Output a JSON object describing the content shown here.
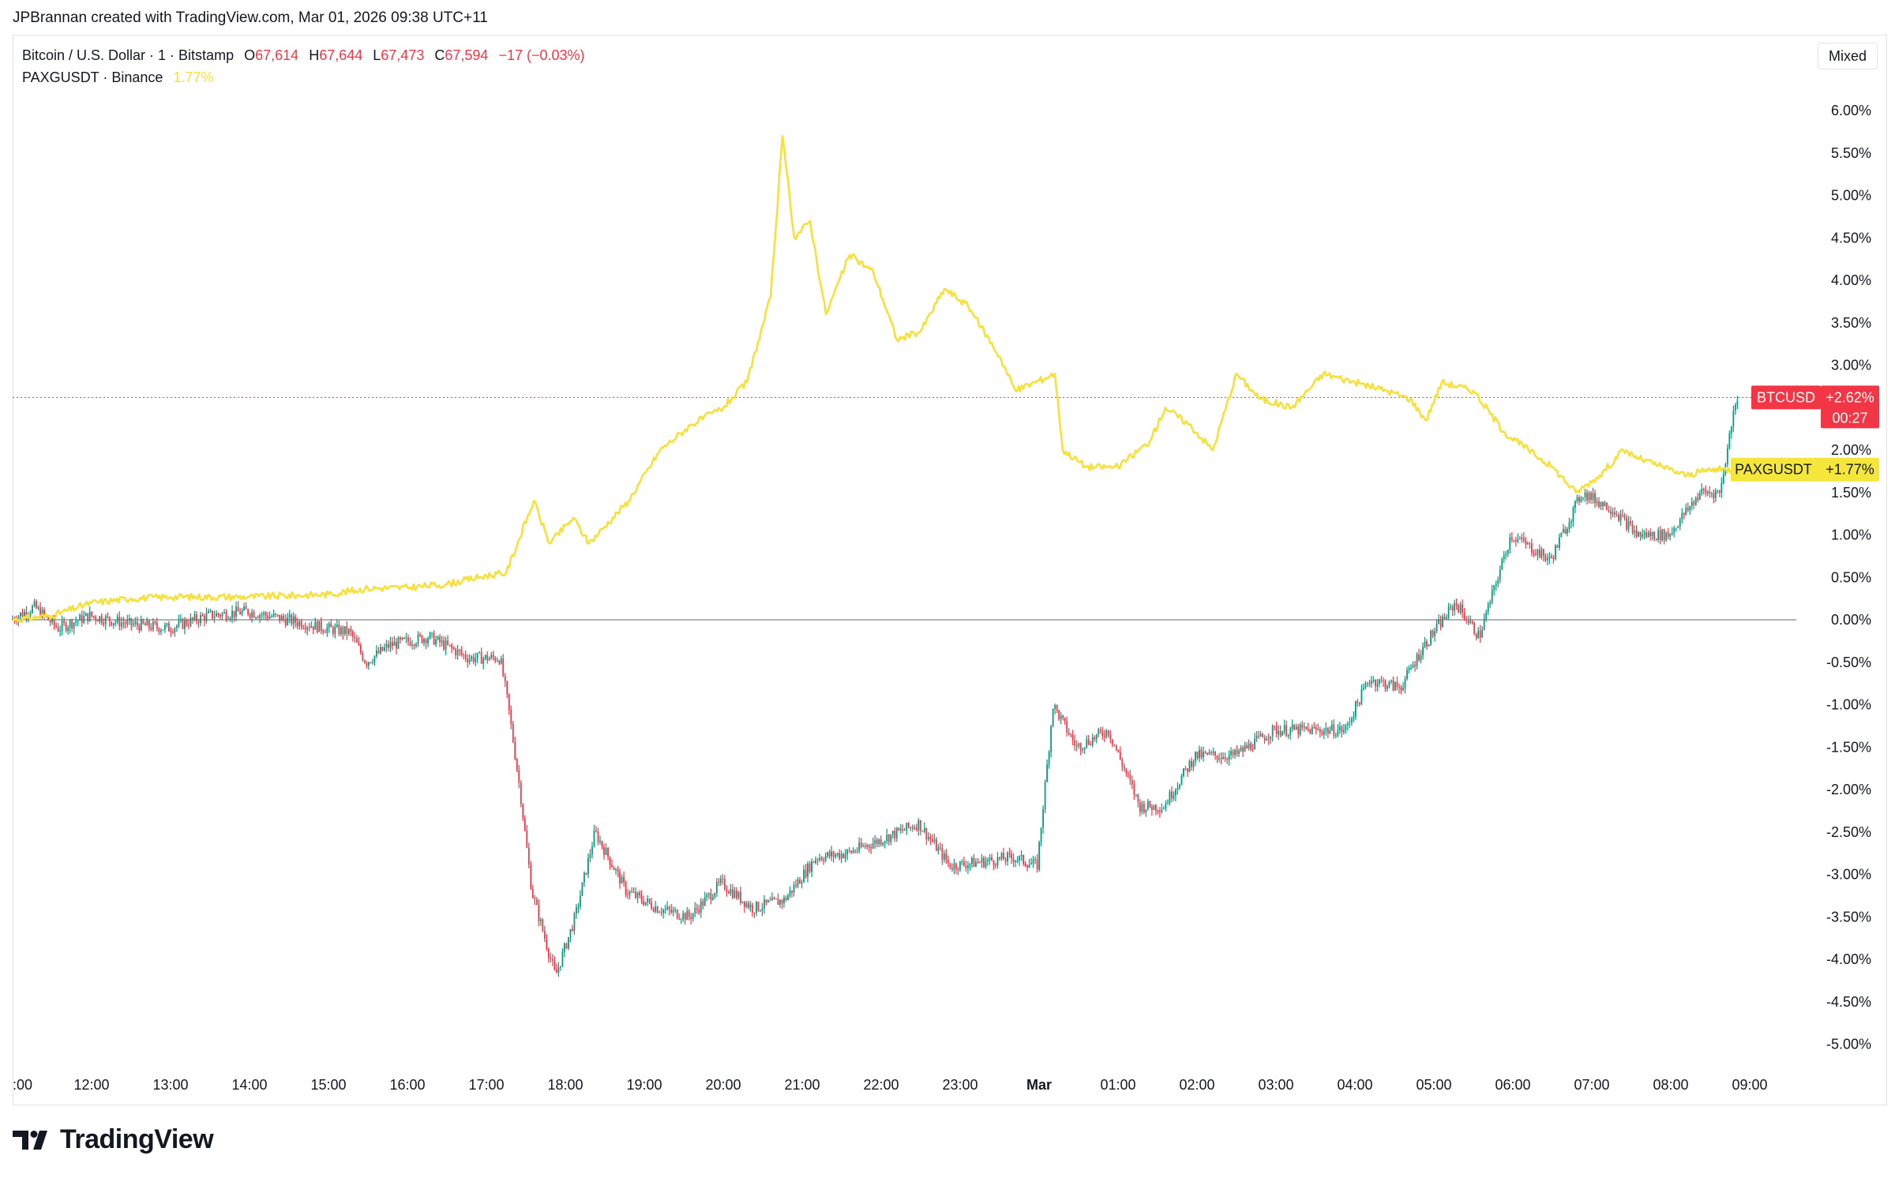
{
  "credit": "JPBrannan created with TradingView.com, Mar 01, 2026 09:38 UTC+11",
  "legend": {
    "symbol1": "Bitcoin / U.S. Dollar · 1 · Bitstamp",
    "o_label": "O",
    "o_value": "67,614",
    "h_label": "H",
    "h_value": "67,644",
    "l_label": "L",
    "l_value": "67,473",
    "c_label": "C",
    "c_value": "67,594",
    "change": "−17 (−0.03%)",
    "symbol2": "PAXGUSDT · Binance",
    "symbol2_value": "1.77%"
  },
  "scale_mode": "Mixed",
  "brand": "TradingView",
  "colors": {
    "up": "#089981",
    "down": "#f23645",
    "paxg": "#f7e03a",
    "btc_tag": "#f23645",
    "paxg_tag": "#f5e63c"
  },
  "tags": {
    "btc_name": "BTCUSD",
    "btc_value": "+2.62%",
    "btc_countdown": "00:27",
    "paxg_name": "PAXGUSDT",
    "paxg_value": "+1.77%"
  },
  "chart_data": {
    "type": "line",
    "title": "",
    "y_unit": "percent",
    "ylim": [
      -5.3,
      6.4
    ],
    "y_ticks": [
      "6.00%",
      "5.50%",
      "5.00%",
      "4.50%",
      "4.00%",
      "3.50%",
      "3.00%",
      "2.50%",
      "2.00%",
      "1.50%",
      "1.00%",
      "0.50%",
      "0.00%",
      "-0.50%",
      "-1.00%",
      "-1.50%",
      "-2.00%",
      "-2.50%",
      "-3.00%",
      "-3.50%",
      "-4.00%",
      "-4.50%",
      "-5.00%"
    ],
    "x_ticks": [
      ":00",
      "12:00",
      "13:00",
      "14:00",
      "15:00",
      "16:00",
      "17:00",
      "18:00",
      "19:00",
      "20:00",
      "21:00",
      "22:00",
      "23:00",
      "Mar",
      "01:00",
      "02:00",
      "03:00",
      "04:00",
      "05:00",
      "06:00",
      "07:00",
      "08:00",
      "09:00"
    ],
    "series": [
      {
        "name": "BTCUSD",
        "style": "candles",
        "points": [
          [
            11,
            0.0
          ],
          [
            11.3,
            0.15
          ],
          [
            11.6,
            -0.1
          ],
          [
            12,
            0.05
          ],
          [
            12.5,
            -0.05
          ],
          [
            13,
            -0.1
          ],
          [
            13.5,
            0.05
          ],
          [
            14,
            0.1
          ],
          [
            14.5,
            0.0
          ],
          [
            15,
            -0.1
          ],
          [
            15.3,
            -0.15
          ],
          [
            15.5,
            -0.5
          ],
          [
            15.8,
            -0.3
          ],
          [
            16.3,
            -0.2
          ],
          [
            16.8,
            -0.45
          ],
          [
            17.2,
            -0.45
          ],
          [
            17.3,
            -1.0
          ],
          [
            17.45,
            -2.0
          ],
          [
            17.6,
            -3.2
          ],
          [
            17.9,
            -4.2
          ],
          [
            18.15,
            -3.5
          ],
          [
            18.4,
            -2.5
          ],
          [
            18.8,
            -3.2
          ],
          [
            19.2,
            -3.4
          ],
          [
            19.6,
            -3.5
          ],
          [
            20.0,
            -3.1
          ],
          [
            20.4,
            -3.4
          ],
          [
            20.8,
            -3.3
          ],
          [
            21.2,
            -2.8
          ],
          [
            21.6,
            -2.75
          ],
          [
            22.0,
            -2.6
          ],
          [
            22.5,
            -2.4
          ],
          [
            22.9,
            -2.9
          ],
          [
            23.3,
            -2.85
          ],
          [
            23.7,
            -2.8
          ],
          [
            24.0,
            -2.9
          ],
          [
            24.15,
            -1.5
          ],
          [
            24.2,
            -1.0
          ],
          [
            24.5,
            -1.5
          ],
          [
            24.9,
            -1.3
          ],
          [
            25.3,
            -2.2
          ],
          [
            25.6,
            -2.2
          ],
          [
            26.0,
            -1.6
          ],
          [
            26.5,
            -1.6
          ],
          [
            27.0,
            -1.3
          ],
          [
            27.5,
            -1.3
          ],
          [
            27.9,
            -1.3
          ],
          [
            28.2,
            -0.7
          ],
          [
            28.6,
            -0.8
          ],
          [
            28.9,
            -0.3
          ],
          [
            29.3,
            0.2
          ],
          [
            29.6,
            -0.2
          ],
          [
            30.0,
            1.0
          ],
          [
            30.5,
            0.7
          ],
          [
            30.9,
            1.5
          ],
          [
            31.3,
            1.3
          ],
          [
            31.6,
            1.0
          ],
          [
            32.0,
            1.0
          ],
          [
            32.4,
            1.5
          ],
          [
            32.65,
            1.5
          ],
          [
            32.85,
            2.62
          ]
        ]
      },
      {
        "name": "PAXGUSDT",
        "style": "line",
        "points": [
          [
            11,
            0.0
          ],
          [
            11.5,
            0.05
          ],
          [
            12,
            0.2
          ],
          [
            12.5,
            0.25
          ],
          [
            13,
            0.27
          ],
          [
            14,
            0.27
          ],
          [
            15,
            0.3
          ],
          [
            15.5,
            0.37
          ],
          [
            16,
            0.38
          ],
          [
            16.5,
            0.42
          ],
          [
            17.0,
            0.52
          ],
          [
            17.25,
            0.55
          ],
          [
            17.6,
            1.4
          ],
          [
            17.8,
            0.9
          ],
          [
            18.1,
            1.2
          ],
          [
            18.3,
            0.9
          ],
          [
            18.8,
            1.4
          ],
          [
            19.2,
            2.0
          ],
          [
            19.6,
            2.3
          ],
          [
            20.0,
            2.5
          ],
          [
            20.3,
            2.8
          ],
          [
            20.6,
            3.8
          ],
          [
            20.75,
            5.7
          ],
          [
            20.9,
            4.5
          ],
          [
            21.1,
            4.7
          ],
          [
            21.3,
            3.6
          ],
          [
            21.6,
            4.3
          ],
          [
            21.9,
            4.1
          ],
          [
            22.2,
            3.3
          ],
          [
            22.5,
            3.4
          ],
          [
            22.8,
            3.9
          ],
          [
            23.1,
            3.7
          ],
          [
            23.5,
            3.1
          ],
          [
            23.7,
            2.7
          ],
          [
            24.2,
            2.9
          ],
          [
            24.3,
            2.0
          ],
          [
            24.6,
            1.8
          ],
          [
            25.0,
            1.8
          ],
          [
            25.4,
            2.1
          ],
          [
            25.6,
            2.5
          ],
          [
            25.9,
            2.3
          ],
          [
            26.2,
            2.0
          ],
          [
            26.5,
            2.9
          ],
          [
            26.8,
            2.6
          ],
          [
            27.2,
            2.5
          ],
          [
            27.6,
            2.9
          ],
          [
            28.0,
            2.8
          ],
          [
            28.4,
            2.7
          ],
          [
            28.7,
            2.6
          ],
          [
            28.9,
            2.35
          ],
          [
            29.1,
            2.8
          ],
          [
            29.5,
            2.7
          ],
          [
            29.9,
            2.2
          ],
          [
            30.2,
            2.0
          ],
          [
            30.5,
            1.8
          ],
          [
            30.8,
            1.5
          ],
          [
            31.1,
            1.7
          ],
          [
            31.4,
            2.0
          ],
          [
            31.6,
            1.9
          ],
          [
            31.9,
            1.8
          ],
          [
            32.2,
            1.7
          ],
          [
            32.5,
            1.77
          ],
          [
            32.85,
            1.77
          ]
        ]
      }
    ]
  }
}
